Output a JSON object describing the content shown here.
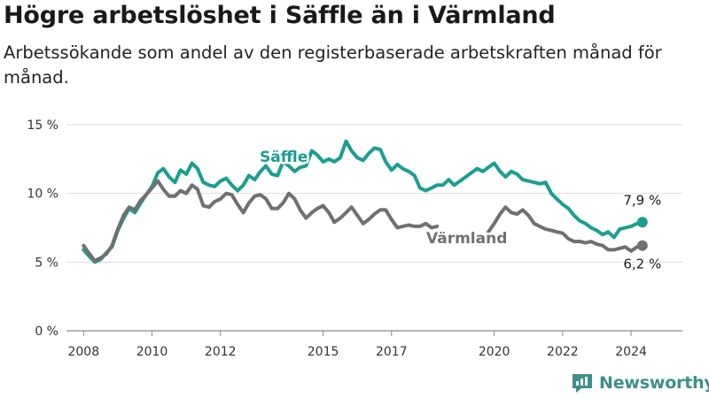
{
  "title": "Högre arbetslöshet i Säffle än i Värmland",
  "subtitle": "Arbetssökande som andel av den registerbaserade arbetskraften månad för månad.",
  "brand": {
    "name": "Newsworthy",
    "color": "#3d8f8a",
    "icon": "bar-chart-logo-icon"
  },
  "chart_data": {
    "type": "line",
    "xlim": [
      2007.5,
      2025.5
    ],
    "ylim": [
      0,
      15
    ],
    "y_ticks": [
      {
        "value": 0,
        "label": "0 %"
      },
      {
        "value": 5,
        "label": "5 %"
      },
      {
        "value": 10,
        "label": "10 %"
      },
      {
        "value": 15,
        "label": "15 %"
      }
    ],
    "x_ticks": [
      {
        "value": 2008,
        "label": "2008"
      },
      {
        "value": 2010,
        "label": "2010"
      },
      {
        "value": 2012,
        "label": "2012"
      },
      {
        "value": 2015,
        "label": "2015"
      },
      {
        "value": 2017,
        "label": "2017"
      },
      {
        "value": 2020,
        "label": "2020"
      },
      {
        "value": 2022,
        "label": "2022"
      },
      {
        "value": 2024,
        "label": "2024"
      }
    ],
    "grid": true,
    "series": [
      {
        "name": "Säffle",
        "color": "#1a9e91",
        "end_label": "7,9 %",
        "points": [
          [
            2008.0,
            5.9
          ],
          [
            2008.17,
            5.4
          ],
          [
            2008.33,
            5.0
          ],
          [
            2008.5,
            5.2
          ],
          [
            2008.67,
            5.7
          ],
          [
            2008.83,
            6.1
          ],
          [
            2009.0,
            7.3
          ],
          [
            2009.17,
            8.2
          ],
          [
            2009.33,
            8.9
          ],
          [
            2009.5,
            8.6
          ],
          [
            2009.67,
            9.3
          ],
          [
            2009.83,
            9.9
          ],
          [
            2010.0,
            10.5
          ],
          [
            2010.17,
            11.5
          ],
          [
            2010.33,
            11.8
          ],
          [
            2010.5,
            11.2
          ],
          [
            2010.67,
            10.8
          ],
          [
            2010.83,
            11.7
          ],
          [
            2011.0,
            11.4
          ],
          [
            2011.17,
            12.2
          ],
          [
            2011.33,
            11.8
          ],
          [
            2011.5,
            10.8
          ],
          [
            2011.67,
            10.6
          ],
          [
            2011.83,
            10.5
          ],
          [
            2012.0,
            10.9
          ],
          [
            2012.17,
            11.1
          ],
          [
            2012.33,
            10.6
          ],
          [
            2012.5,
            10.2
          ],
          [
            2012.67,
            10.6
          ],
          [
            2012.83,
            11.3
          ],
          [
            2013.0,
            11.0
          ],
          [
            2013.17,
            11.6
          ],
          [
            2013.33,
            12.0
          ],
          [
            2013.5,
            11.4
          ],
          [
            2013.67,
            11.3
          ],
          [
            2013.83,
            12.3
          ],
          [
            2014.0,
            12.0
          ],
          [
            2014.17,
            11.6
          ],
          [
            2014.33,
            11.9
          ],
          [
            2014.5,
            12.0
          ],
          [
            2014.67,
            13.1
          ],
          [
            2014.83,
            12.8
          ],
          [
            2015.0,
            12.3
          ],
          [
            2015.17,
            12.5
          ],
          [
            2015.33,
            12.3
          ],
          [
            2015.5,
            12.6
          ],
          [
            2015.67,
            13.8
          ],
          [
            2015.83,
            13.1
          ],
          [
            2016.0,
            12.6
          ],
          [
            2016.17,
            12.4
          ],
          [
            2016.33,
            12.9
          ],
          [
            2016.5,
            13.3
          ],
          [
            2016.67,
            13.2
          ],
          [
            2016.83,
            12.3
          ],
          [
            2017.0,
            11.7
          ],
          [
            2017.17,
            12.1
          ],
          [
            2017.33,
            11.8
          ],
          [
            2017.5,
            11.6
          ],
          [
            2017.67,
            11.3
          ],
          [
            2017.83,
            10.4
          ],
          [
            2018.0,
            10.2
          ],
          [
            2018.17,
            10.4
          ],
          [
            2018.33,
            10.6
          ],
          [
            2018.5,
            10.6
          ],
          [
            2018.67,
            11.0
          ],
          [
            2018.83,
            10.6
          ],
          [
            2019.0,
            10.9
          ],
          [
            2019.17,
            11.2
          ],
          [
            2019.33,
            11.5
          ],
          [
            2019.5,
            11.8
          ],
          [
            2019.67,
            11.6
          ],
          [
            2019.83,
            11.9
          ],
          [
            2020.0,
            12.2
          ],
          [
            2020.17,
            11.6
          ],
          [
            2020.33,
            11.2
          ],
          [
            2020.5,
            11.6
          ],
          [
            2020.67,
            11.4
          ],
          [
            2020.83,
            11.0
          ],
          [
            2021.0,
            10.9
          ],
          [
            2021.17,
            10.8
          ],
          [
            2021.33,
            10.7
          ],
          [
            2021.5,
            10.8
          ],
          [
            2021.67,
            10.0
          ],
          [
            2021.83,
            9.6
          ],
          [
            2022.0,
            9.2
          ],
          [
            2022.17,
            8.9
          ],
          [
            2022.33,
            8.4
          ],
          [
            2022.5,
            8.0
          ],
          [
            2022.67,
            7.8
          ],
          [
            2022.83,
            7.5
          ],
          [
            2023.0,
            7.3
          ],
          [
            2023.17,
            7.0
          ],
          [
            2023.33,
            7.2
          ],
          [
            2023.5,
            6.8
          ],
          [
            2023.67,
            7.4
          ],
          [
            2023.83,
            7.5
          ],
          [
            2024.0,
            7.6
          ],
          [
            2024.17,
            7.8
          ],
          [
            2024.33,
            7.9
          ]
        ]
      },
      {
        "name": "Värmland",
        "color": "#707070",
        "end_label": "6,2 %",
        "points": [
          [
            2008.0,
            6.2
          ],
          [
            2008.17,
            5.6
          ],
          [
            2008.33,
            5.1
          ],
          [
            2008.5,
            5.3
          ],
          [
            2008.67,
            5.6
          ],
          [
            2008.83,
            6.2
          ],
          [
            2009.0,
            7.4
          ],
          [
            2009.17,
            8.4
          ],
          [
            2009.33,
            9.0
          ],
          [
            2009.5,
            8.8
          ],
          [
            2009.67,
            9.5
          ],
          [
            2009.83,
            9.9
          ],
          [
            2010.0,
            10.4
          ],
          [
            2010.17,
            10.9
          ],
          [
            2010.33,
            10.3
          ],
          [
            2010.5,
            9.8
          ],
          [
            2010.67,
            9.8
          ],
          [
            2010.83,
            10.2
          ],
          [
            2011.0,
            10.0
          ],
          [
            2011.17,
            10.6
          ],
          [
            2011.33,
            10.3
          ],
          [
            2011.5,
            9.1
          ],
          [
            2011.67,
            9.0
          ],
          [
            2011.83,
            9.4
          ],
          [
            2012.0,
            9.6
          ],
          [
            2012.17,
            10.0
          ],
          [
            2012.33,
            9.9
          ],
          [
            2012.5,
            9.2
          ],
          [
            2012.67,
            8.6
          ],
          [
            2012.83,
            9.3
          ],
          [
            2013.0,
            9.8
          ],
          [
            2013.17,
            9.9
          ],
          [
            2013.33,
            9.6
          ],
          [
            2013.5,
            8.9
          ],
          [
            2013.67,
            8.9
          ],
          [
            2013.83,
            9.3
          ],
          [
            2014.0,
            10.0
          ],
          [
            2014.17,
            9.6
          ],
          [
            2014.33,
            8.8
          ],
          [
            2014.5,
            8.2
          ],
          [
            2014.67,
            8.6
          ],
          [
            2014.83,
            8.9
          ],
          [
            2015.0,
            9.1
          ],
          [
            2015.17,
            8.6
          ],
          [
            2015.33,
            7.9
          ],
          [
            2015.5,
            8.2
          ],
          [
            2015.67,
            8.6
          ],
          [
            2015.83,
            9.0
          ],
          [
            2016.0,
            8.4
          ],
          [
            2016.17,
            7.8
          ],
          [
            2016.33,
            8.1
          ],
          [
            2016.5,
            8.5
          ],
          [
            2016.67,
            8.8
          ],
          [
            2016.83,
            8.8
          ],
          [
            2017.0,
            8.1
          ],
          [
            2017.17,
            7.5
          ],
          [
            2017.33,
            7.6
          ],
          [
            2017.5,
            7.7
          ],
          [
            2017.67,
            7.6
          ],
          [
            2017.83,
            7.6
          ],
          [
            2018.0,
            7.8
          ],
          [
            2018.17,
            7.5
          ],
          [
            2018.33,
            7.6
          ],
          null,
          [
            2019.83,
            7.2
          ],
          [
            2020.0,
            7.8
          ],
          [
            2020.17,
            8.5
          ],
          [
            2020.33,
            9.0
          ],
          [
            2020.5,
            8.6
          ],
          [
            2020.67,
            8.5
          ],
          [
            2020.83,
            8.8
          ],
          [
            2021.0,
            8.4
          ],
          [
            2021.17,
            7.8
          ],
          [
            2021.33,
            7.6
          ],
          [
            2021.5,
            7.4
          ],
          [
            2021.67,
            7.3
          ],
          [
            2021.83,
            7.2
          ],
          [
            2022.0,
            7.1
          ],
          [
            2022.17,
            6.7
          ],
          [
            2022.33,
            6.5
          ],
          [
            2022.5,
            6.5
          ],
          [
            2022.67,
            6.4
          ],
          [
            2022.83,
            6.5
          ],
          [
            2023.0,
            6.3
          ],
          [
            2023.17,
            6.2
          ],
          [
            2023.33,
            5.9
          ],
          [
            2023.5,
            5.9
          ],
          [
            2023.67,
            6.0
          ],
          [
            2023.83,
            6.1
          ],
          [
            2024.0,
            5.8
          ],
          [
            2024.17,
            6.1
          ],
          [
            2024.33,
            6.2
          ]
        ]
      }
    ]
  }
}
